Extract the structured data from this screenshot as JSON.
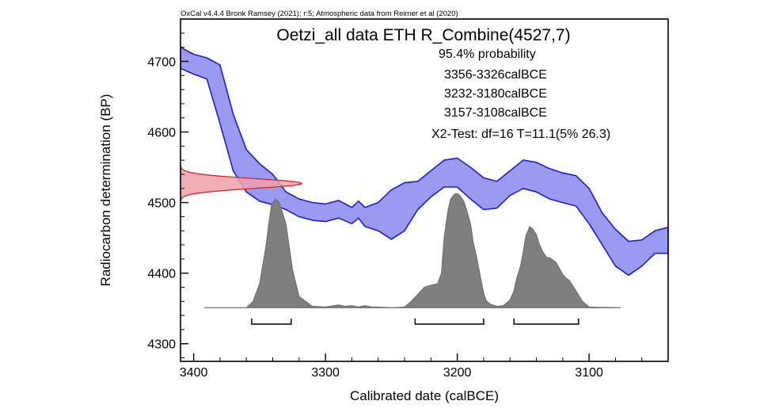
{
  "chart_data": {
    "type": "area",
    "header": "OxCal v4.4.4 Bronk Ramsey (2021); r:5; Atmospheric data from Reimer et al (2020)",
    "title": "Oetzi_all data ETH R_Combine(4527,7)",
    "annotations": [
      "95.4% probability",
      "3356-3326calBCE",
      "3232-3180calBCE",
      "3157-3108calBCE",
      "X2-Test: df=16 T=11.1(5% 26.3)"
    ],
    "xlabel": "Calibrated date (calBCE)",
    "ylabel": "Radiocarbon determination (BP)",
    "xlim": [
      3410,
      3040
    ],
    "ylim": [
      4275,
      4760
    ],
    "x_ticks": [
      3400,
      3300,
      3200,
      3100
    ],
    "y_ticks": [
      4300,
      4400,
      4500,
      4600,
      4700
    ],
    "colors": {
      "calibration_curve": "#1e1ecc",
      "calibration_fill": "#9a9af0",
      "radiocarbon_fill": "#f0a0a8",
      "radiocarbon_edge": "#cc1e1e",
      "posterior_fill": "#7f7f7f",
      "range_bracket": "#000000"
    },
    "calibration_curve": {
      "name": "IntCal20",
      "x": [
        3410,
        3400,
        3390,
        3380,
        3370,
        3360,
        3350,
        3340,
        3330,
        3320,
        3310,
        3300,
        3290,
        3280,
        3275,
        3270,
        3260,
        3250,
        3240,
        3230,
        3220,
        3210,
        3200,
        3190,
        3180,
        3170,
        3160,
        3150,
        3140,
        3130,
        3120,
        3110,
        3100,
        3090,
        3080,
        3070,
        3060,
        3050,
        3040
      ],
      "upper": [
        4720,
        4710,
        4705,
        4695,
        4625,
        4575,
        4555,
        4540,
        4515,
        4505,
        4500,
        4498,
        4503,
        4493,
        4502,
        4493,
        4500,
        4518,
        4528,
        4530,
        4545,
        4560,
        4563,
        4550,
        4535,
        4530,
        4545,
        4560,
        4557,
        4548,
        4542,
        4538,
        4520,
        4485,
        4462,
        4445,
        4447,
        4460,
        4465
      ],
      "lower": [
        4690,
        4682,
        4675,
        4612,
        4545,
        4515,
        4502,
        4497,
        4490,
        4480,
        4475,
        4473,
        4478,
        4470,
        4478,
        4466,
        4460,
        4448,
        4460,
        4490,
        4508,
        4522,
        4522,
        4505,
        4490,
        4492,
        4510,
        4520,
        4515,
        4505,
        4500,
        4495,
        4470,
        4440,
        4410,
        4397,
        4410,
        4428,
        4428
      ]
    },
    "radiocarbon_determination": {
      "mean": 4527,
      "error": 7,
      "likelihood_baseline_x": 3410,
      "likelihood_peak_x": 3318
    },
    "posterior": {
      "baseline_y": 4351,
      "x": [
        3392,
        3360,
        3355,
        3350,
        3345,
        3343,
        3341,
        3338,
        3335,
        3330,
        3325,
        3320,
        3310,
        3300,
        3290,
        3285,
        3280,
        3275,
        3270,
        3265,
        3260,
        3250,
        3240,
        3235,
        3230,
        3225,
        3220,
        3215,
        3212,
        3210,
        3207,
        3205,
        3202,
        3200,
        3198,
        3195,
        3193,
        3190,
        3188,
        3185,
        3182,
        3180,
        3178,
        3175,
        3170,
        3165,
        3160,
        3157,
        3155,
        3152,
        3150,
        3148,
        3145,
        3143,
        3140,
        3138,
        3135,
        3132,
        3130,
        3127,
        3125,
        3122,
        3120,
        3117,
        3115,
        3110,
        3105,
        3100,
        3076
      ],
      "y": [
        4351,
        4351,
        4360,
        4385,
        4440,
        4470,
        4497,
        4505,
        4500,
        4470,
        4405,
        4367,
        4353,
        4352,
        4355,
        4353,
        4354,
        4352,
        4354,
        4352,
        4352,
        4351,
        4352,
        4360,
        4370,
        4380,
        4383,
        4385,
        4400,
        4450,
        4490,
        4505,
        4512,
        4513,
        4510,
        4502,
        4490,
        4470,
        4445,
        4420,
        4390,
        4372,
        4361,
        4356,
        4353,
        4354,
        4362,
        4375,
        4392,
        4410,
        4430,
        4453,
        4466,
        4463,
        4455,
        4442,
        4430,
        4422,
        4422,
        4418,
        4415,
        4405,
        4398,
        4392,
        4390,
        4375,
        4360,
        4352,
        4351
      ]
    },
    "ranges_95": [
      [
        3356,
        3326
      ],
      [
        3232,
        3180
      ],
      [
        3157,
        3108
      ]
    ],
    "grid": false,
    "legend": "none"
  }
}
